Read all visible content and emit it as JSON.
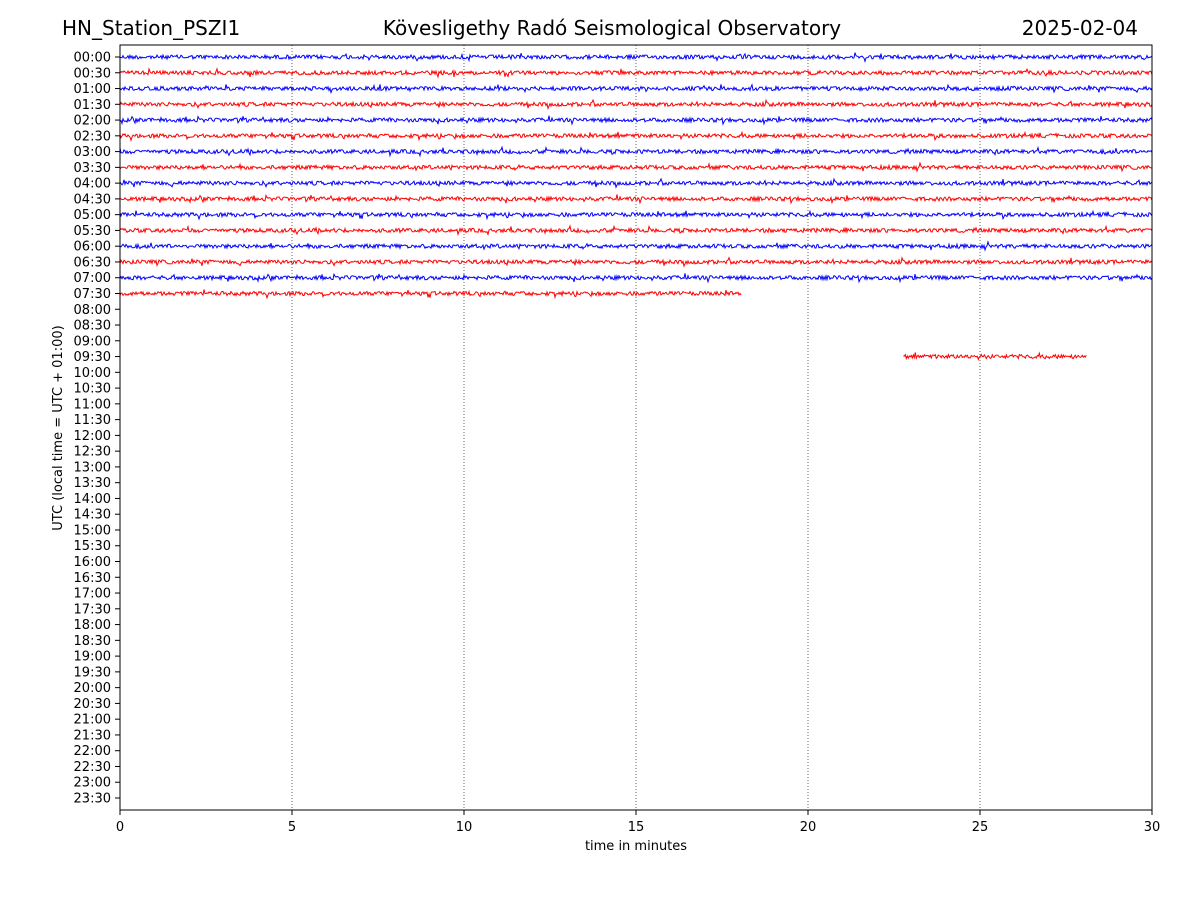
{
  "chart_data": {
    "type": "line",
    "title_left": "HN_Station_PSZI1",
    "title": "Kövesligethy Radó Seismological Observatory",
    "title_right": "2025-02-04",
    "xlabel": "time in minutes",
    "ylabel": "UTC (local time = UTC + 01:00)",
    "xlim": [
      0,
      30
    ],
    "xticks": [
      0,
      5,
      10,
      15,
      20,
      25,
      30
    ],
    "grid": "vertical dotted at major x ticks",
    "row_labels": [
      "00:00",
      "00:30",
      "01:00",
      "01:30",
      "02:00",
      "02:30",
      "03:00",
      "03:30",
      "04:00",
      "04:30",
      "05:00",
      "05:30",
      "06:00",
      "06:30",
      "07:00",
      "07:30",
      "08:00",
      "08:30",
      "09:00",
      "09:30",
      "10:00",
      "10:30",
      "11:00",
      "11:30",
      "12:00",
      "12:30",
      "13:00",
      "13:30",
      "14:00",
      "14:30",
      "15:00",
      "15:30",
      "16:00",
      "16:30",
      "17:00",
      "17:30",
      "18:00",
      "18:30",
      "19:00",
      "19:30",
      "20:00",
      "20:30",
      "21:00",
      "21:30",
      "22:00",
      "22:30",
      "23:00",
      "23:30"
    ],
    "colors": [
      "#0000ff",
      "#ff0000"
    ],
    "traces": [
      {
        "row": "00:00",
        "start": 0,
        "end": 30
      },
      {
        "row": "00:30",
        "start": 0,
        "end": 30
      },
      {
        "row": "01:00",
        "start": 0,
        "end": 30
      },
      {
        "row": "01:30",
        "start": 0,
        "end": 30
      },
      {
        "row": "02:00",
        "start": 0,
        "end": 30
      },
      {
        "row": "02:30",
        "start": 0,
        "end": 30
      },
      {
        "row": "03:00",
        "start": 0,
        "end": 30
      },
      {
        "row": "03:30",
        "start": 0,
        "end": 30
      },
      {
        "row": "04:00",
        "start": 0,
        "end": 30
      },
      {
        "row": "04:30",
        "start": 0,
        "end": 30
      },
      {
        "row": "05:00",
        "start": 0,
        "end": 30
      },
      {
        "row": "05:30",
        "start": 0,
        "end": 30
      },
      {
        "row": "06:00",
        "start": 0,
        "end": 30
      },
      {
        "row": "06:30",
        "start": 0,
        "end": 30
      },
      {
        "row": "07:00",
        "start": 0,
        "end": 30
      },
      {
        "row": "07:30",
        "start": 0,
        "end": 18.07
      },
      {
        "row": "09:30",
        "start": 22.77,
        "end": 28.1
      }
    ]
  }
}
